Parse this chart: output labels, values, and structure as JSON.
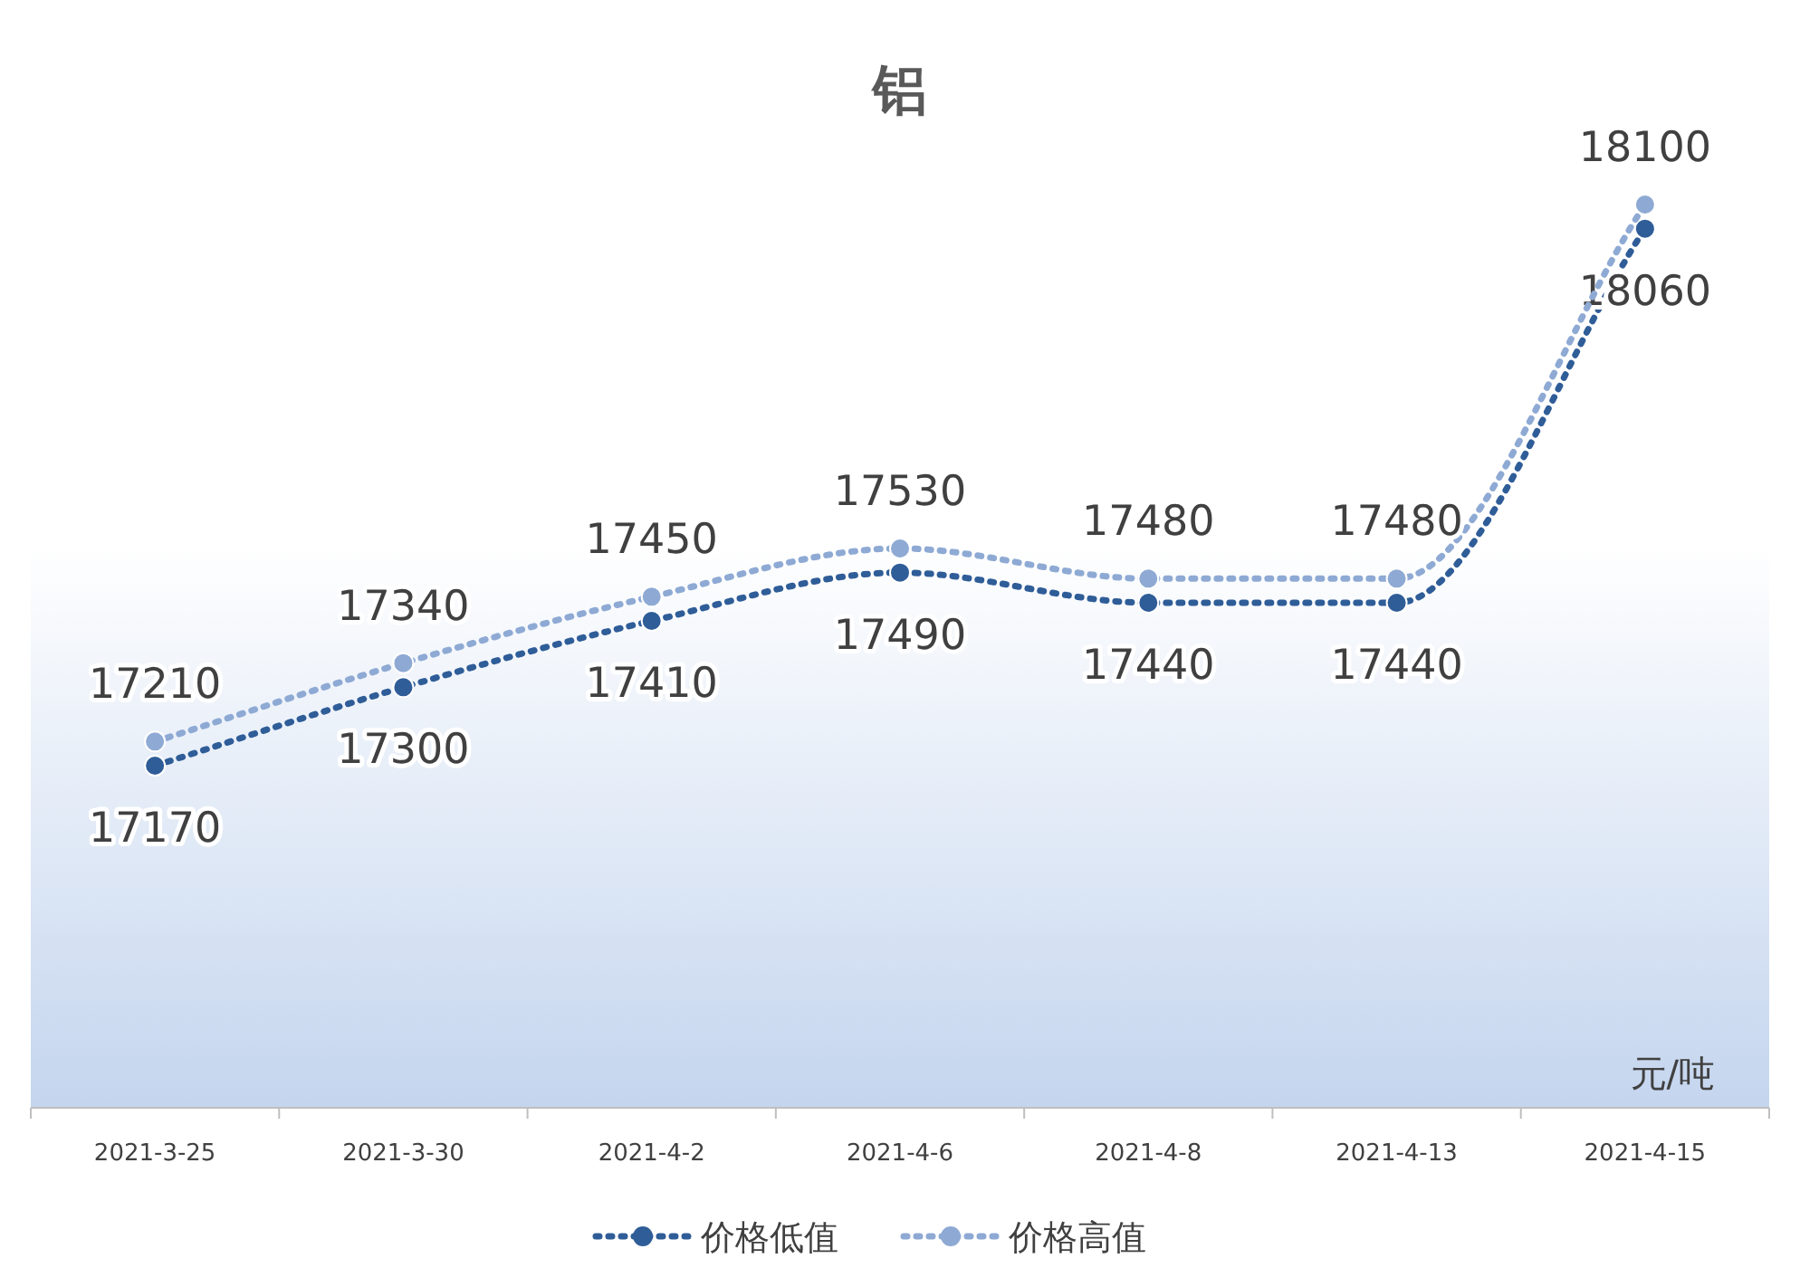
{
  "chart_data": {
    "type": "line",
    "title": "铝",
    "categories": [
      "2021-3-25",
      "2021-3-30",
      "2021-4-2",
      "2021-4-6",
      "2021-4-8",
      "2021-4-13",
      "2021-4-15"
    ],
    "series": [
      {
        "name": "价格低值",
        "color": "#2f5d98",
        "values": [
          17170,
          17300,
          17410,
          17490,
          17440,
          17440,
          18060
        ]
      },
      {
        "name": "价格高值",
        "color": "#8eaad4",
        "values": [
          17210,
          17340,
          17450,
          17530,
          17480,
          17480,
          18100
        ]
      }
    ],
    "data_labels": true,
    "marker": "circle",
    "line_style": "dotted",
    "legend": "bottom",
    "annotations": [
      "元/吨"
    ]
  }
}
